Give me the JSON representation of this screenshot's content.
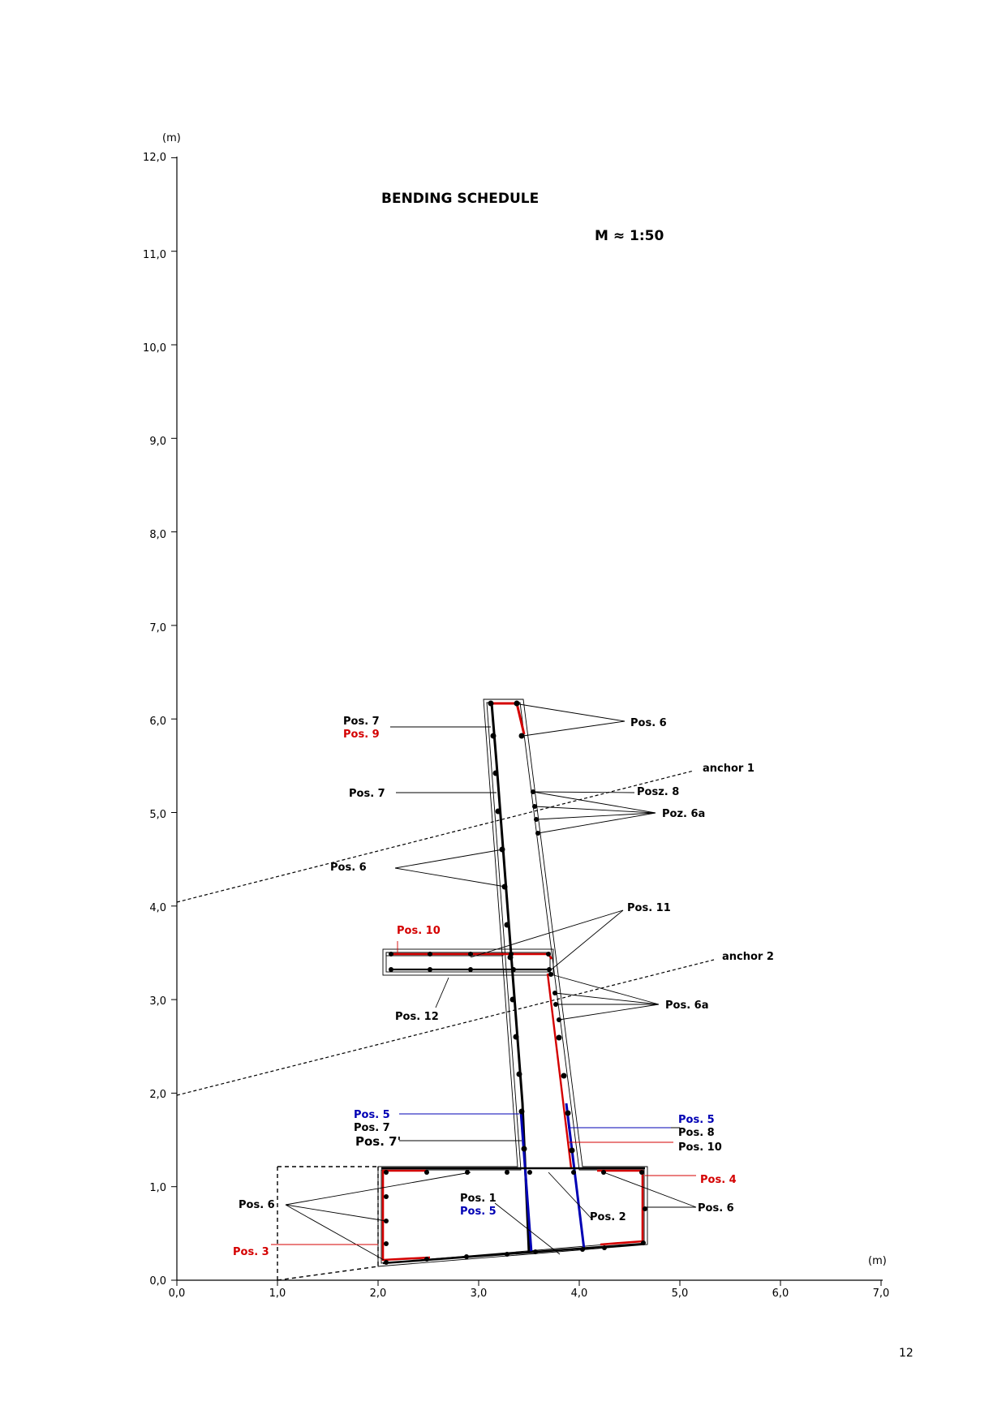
{
  "title": "BENDING SCHEDULE",
  "scale": "M  ≈ 1:50",
  "page_number": "12",
  "unit_x": "(m)",
  "unit_y": "(m)",
  "colors": {
    "black": "#000000",
    "red": "#d40000",
    "blue": "#0000b4"
  },
  "x_ticks": [
    "0,0",
    "1,0",
    "2,0",
    "3,0",
    "4,0",
    "5,0",
    "6,0",
    "7,0"
  ],
  "y_ticks": [
    "0,0",
    "1,0",
    "2,0",
    "3,0",
    "4,0",
    "5,0",
    "6,0",
    "7,0",
    "8,0",
    "9,0",
    "10,0",
    "11,0",
    "12,0"
  ],
  "anchors": [
    "anchor 1",
    "anchor 2"
  ],
  "labels": {
    "pos7_top": "Pos. 7",
    "pos9": "Pos. 9",
    "pos6_top": "Pos. 6",
    "pos7_mid": "Pos. 7",
    "posz8": "Posz. 8",
    "poz6a": "Poz. 6a",
    "pos6_mid": "Pos. 6",
    "pos11": "Pos. 11",
    "pos10_left": "Pos. 10",
    "pos6a_low": "Pos. 6a",
    "pos12": "Pos. 12",
    "pos5_left": "Pos. 5",
    "pos7_low": "Pos. 7",
    "pos7_prime": "Pos. 7'",
    "pos5_right": "Pos. 5",
    "pos8_right": "Pos. 8",
    "pos10_right": "Pos. 10",
    "pos4": "Pos. 4",
    "pos6_left": "Pos. 6",
    "pos1": "Pos. 1",
    "pos5_inner": "Pos. 5",
    "pos2": "Pos. 2",
    "pos6_right": "Pos. 6",
    "pos3": "Pos. 3"
  }
}
